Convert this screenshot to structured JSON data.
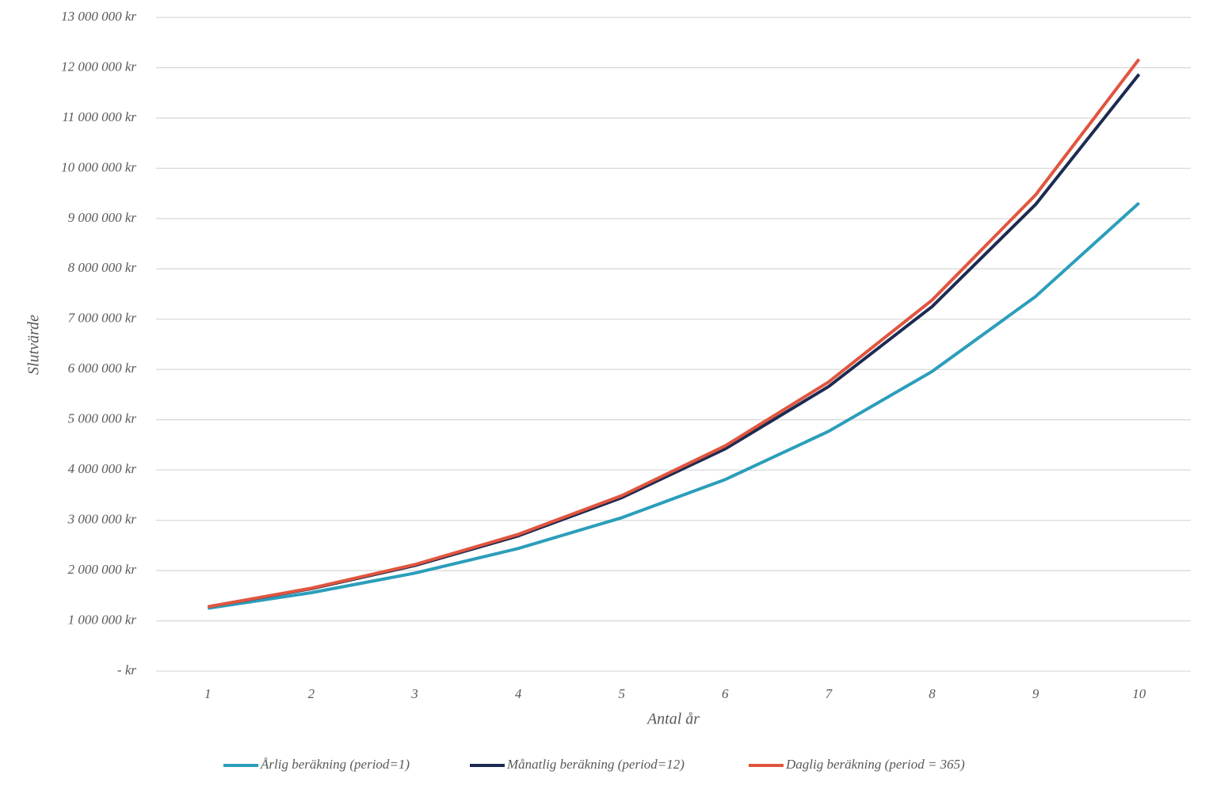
{
  "chart_data": {
    "type": "line",
    "y_label": "Slutvärde",
    "x_label": "Antal år",
    "categories": [
      "1",
      "2",
      "3",
      "4",
      "5",
      "6",
      "7",
      "8",
      "9",
      "10"
    ],
    "series": [
      {
        "name": "Årlig beräkning (period=1)",
        "color": "#2b9ebb",
        "values": [
          1250000,
          1560000,
          1950000,
          2440000,
          3050000,
          3810000,
          4770000,
          5960000,
          7450000,
          9310000
        ]
      },
      {
        "name": "Månatlig beräkning (period=12)",
        "color": "#1d2b52",
        "values": [
          1280000,
          1640000,
          2100000,
          2690000,
          3450000,
          4420000,
          5660000,
          7250000,
          9280000,
          11870000
        ]
      },
      {
        "name": "Daglig beräkning (period = 365)",
        "color": "#e1553f",
        "values": [
          1280000,
          1650000,
          2120000,
          2720000,
          3490000,
          4480000,
          5750000,
          7380000,
          9470000,
          12170000
        ]
      }
    ],
    "ylim": [
      0,
      13000000
    ],
    "yticks": [
      {
        "value": 0,
        "label": "-  kr"
      },
      {
        "value": 1000000,
        "label": "1 000 000 kr"
      },
      {
        "value": 2000000,
        "label": "2 000 000 kr"
      },
      {
        "value": 3000000,
        "label": "3 000 000 kr"
      },
      {
        "value": 4000000,
        "label": "4 000 000 kr"
      },
      {
        "value": 5000000,
        "label": "5 000 000 kr"
      },
      {
        "value": 6000000,
        "label": "6 000 000 kr"
      },
      {
        "value": 7000000,
        "label": "7 000 000 kr"
      },
      {
        "value": 8000000,
        "label": "8 000 000 kr"
      },
      {
        "value": 9000000,
        "label": "9 000 000 kr"
      },
      {
        "value": 10000000,
        "label": "10 000 000 kr"
      },
      {
        "value": 11000000,
        "label": "11 000 000 kr"
      },
      {
        "value": 12000000,
        "label": "12 000 000 kr"
      },
      {
        "value": 13000000,
        "label": "13 000 000 kr"
      }
    ],
    "grid": true,
    "legend": "bottom"
  }
}
